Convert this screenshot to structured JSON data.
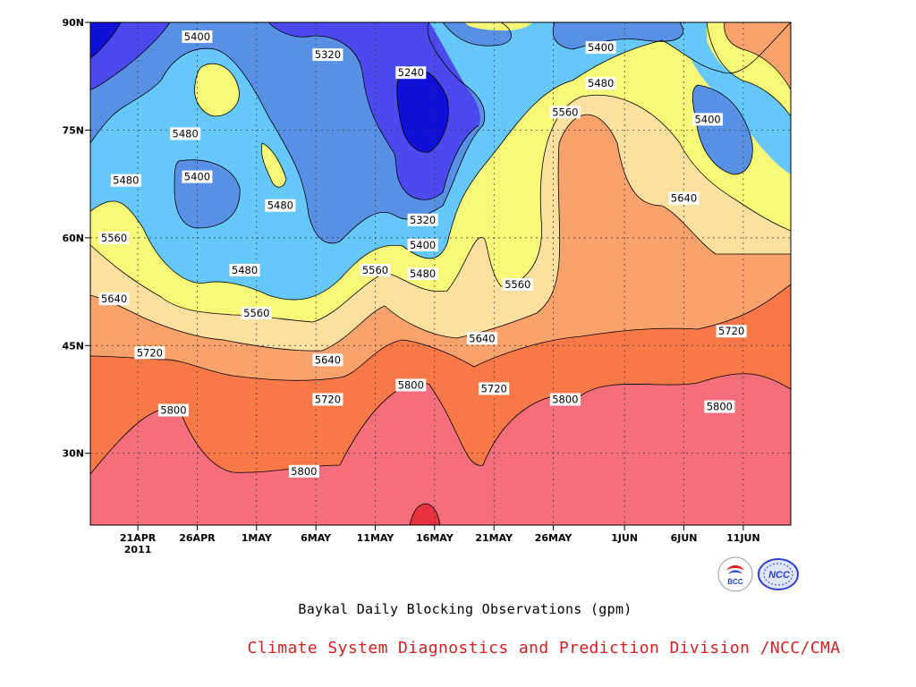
{
  "chart_data": {
    "type": "heatmap",
    "subtype": "filled-contour time-latitude (Hovmoller) plot of 500hPa geopotential height",
    "title": "Baykal Daily Blocking Observations (gpm)",
    "source": "Climate System Diagnostics and Prediction Division /NCC/CMA",
    "x_axis": {
      "ticks": [
        "21APR",
        "26APR",
        "1MAY",
        "6MAY",
        "11MAY",
        "16MAY",
        "21MAY",
        "26MAY",
        "1JUN",
        "6JUN",
        "11JUN"
      ],
      "year_label": "2011",
      "range": [
        "2011-04-17",
        "2011-06-15"
      ]
    },
    "y_axis": {
      "ticks": [
        "30N",
        "45N",
        "60N",
        "75N",
        "90N"
      ],
      "range": [
        20,
        90
      ],
      "unit": "degrees latitude"
    },
    "contour_levels": [
      5240,
      5320,
      5400,
      5480,
      5560,
      5640,
      5720,
      5800,
      5880
    ],
    "fill_colors": [
      "#1010d8",
      "#4a4aee",
      "#5890e6",
      "#66c8fa",
      "#f8f878",
      "#fce0a0",
      "#faa26c",
      "#f87848",
      "#f46e7c",
      "#e83240"
    ],
    "contour_labels": [
      {
        "text": "5400",
        "date": "2011-04-26",
        "lat": 88
      },
      {
        "text": "5320",
        "date": "2011-05-07",
        "lat": 85.5
      },
      {
        "text": "5240",
        "date": "2011-05-14",
        "lat": 83
      },
      {
        "text": "5400",
        "date": "2011-05-30",
        "lat": 86.5
      },
      {
        "text": "5480",
        "date": "2011-05-30",
        "lat": 81.5
      },
      {
        "text": "5560",
        "date": "2011-05-27",
        "lat": 77.5
      },
      {
        "text": "5400",
        "date": "2011-06-08",
        "lat": 76.5
      },
      {
        "text": "5480",
        "date": "2011-04-25",
        "lat": 74.5
      },
      {
        "text": "5400",
        "date": "2011-04-26",
        "lat": 68.5
      },
      {
        "text": "5480",
        "date": "2011-04-20",
        "lat": 68
      },
      {
        "text": "5480",
        "date": "2011-05-03",
        "lat": 64.5
      },
      {
        "text": "5320",
        "date": "2011-05-15",
        "lat": 62.5
      },
      {
        "text": "5640",
        "date": "2011-06-06",
        "lat": 65.5
      },
      {
        "text": "5560",
        "date": "2011-04-19",
        "lat": 60
      },
      {
        "text": "5400",
        "date": "2011-05-15",
        "lat": 59
      },
      {
        "text": "5480",
        "date": "2011-04-30",
        "lat": 55.5
      },
      {
        "text": "5560",
        "date": "2011-05-11",
        "lat": 55.5
      },
      {
        "text": "5480",
        "date": "2011-05-15",
        "lat": 55
      },
      {
        "text": "5560",
        "date": "2011-05-23",
        "lat": 53.5
      },
      {
        "text": "5640",
        "date": "2011-04-19",
        "lat": 51.5
      },
      {
        "text": "5560",
        "date": "2011-05-01",
        "lat": 49.5
      },
      {
        "text": "5640",
        "date": "2011-05-20",
        "lat": 46
      },
      {
        "text": "5720",
        "date": "2011-04-22",
        "lat": 44
      },
      {
        "text": "5640",
        "date": "2011-05-07",
        "lat": 43
      },
      {
        "text": "5720",
        "date": "2011-06-10",
        "lat": 47
      },
      {
        "text": "5720",
        "date": "2011-05-07",
        "lat": 37.5
      },
      {
        "text": "5800",
        "date": "2011-05-14",
        "lat": 39.5
      },
      {
        "text": "5720",
        "date": "2011-05-21",
        "lat": 39
      },
      {
        "text": "5800",
        "date": "2011-05-27",
        "lat": 37.5
      },
      {
        "text": "5800",
        "date": "2011-06-09",
        "lat": 36.5
      },
      {
        "text": "5800",
        "date": "2011-04-24",
        "lat": 36
      },
      {
        "text": "5800",
        "date": "2011-05-05",
        "lat": 27.5
      }
    ],
    "legend": "none",
    "grid": true
  },
  "logos": [
    {
      "name": "BCC"
    },
    {
      "name": "NCC"
    }
  ]
}
